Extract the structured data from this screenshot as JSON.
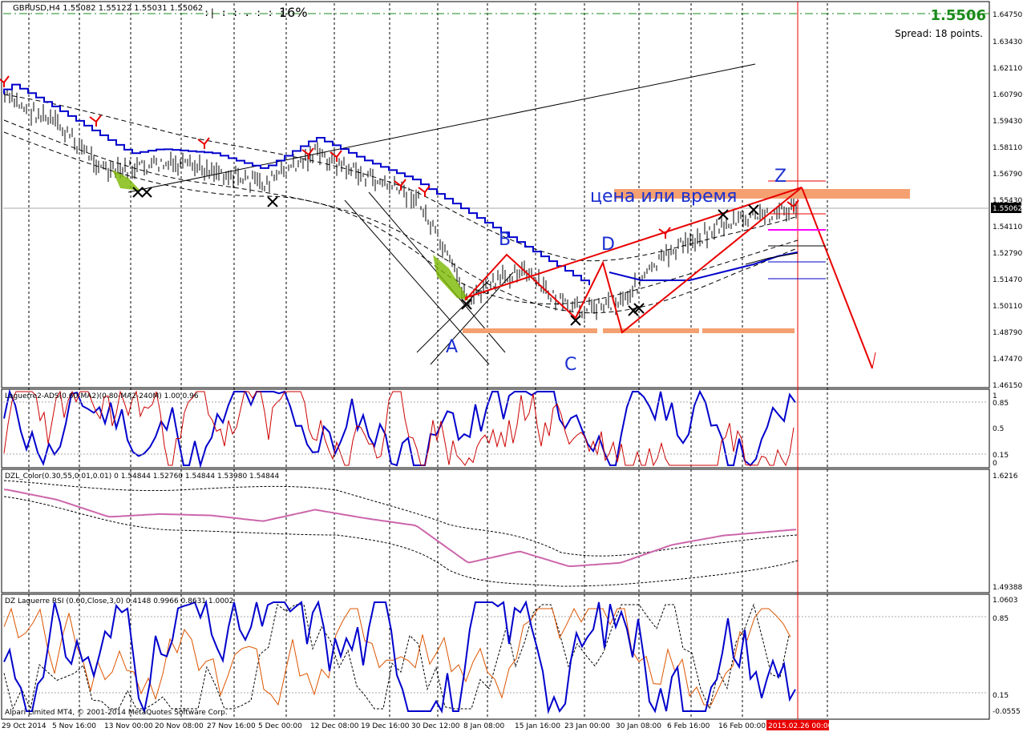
{
  "header": {
    "symbol_line": "GBPUSD,H4  1.55082 1.55122 1.55031 1.55062",
    "progress_glyphs": ":|  :  :  .  :  :  :",
    "progress_text": "16%",
    "big_price": "1.5506",
    "spread": "Spread: 18 points."
  },
  "annotations": {
    "A": "A",
    "B": "B",
    "C": "C",
    "D": "D",
    "Z": "Z",
    "price_or_time": "цена или время"
  },
  "panels": {
    "main": {
      "y_ticks": [
        "1.64750",
        "1.63430",
        "1.62110",
        "1.60790",
        "1.59430",
        "1.58110",
        "1.56790",
        "1.55430",
        "1.54110",
        "1.52790",
        "1.51470",
        "1.50110",
        "1.48790",
        "1.47470",
        "1.46150"
      ],
      "current_price": "1.55062"
    },
    "ind1": {
      "label": "Laguerre2-ADS(0.60-MA2)(0.80-MA2-240M) 1.00 0.96",
      "y_ticks": [
        "1",
        "0.85",
        "0.5",
        "0.15",
        "0"
      ]
    },
    "ind2": {
      "label": "DZL_Color(0.30,55,0.01,0.01) 0 1.54844 1.52760 1.54844 1.53980 1.54844",
      "y_ticks": [
        "1.6216",
        "1.49388"
      ]
    },
    "ind3": {
      "label": "DZ Laguerre RSI (0.60,Close,3,0) 0.4148 0.9966 0.8631 1.0002",
      "y_ticks": [
        "1.0603",
        "0.85",
        "0.15",
        "-0.0555"
      ]
    }
  },
  "x_labels": [
    "29 Oct 2014",
    "5 Nov 16:00",
    "13 Nov 00:00",
    "20 Nov 08:00",
    "27 Nov 16:00",
    "5 Dec 00:00",
    "12 Dec 08:00",
    "19 Dec 16:00",
    "30 Dec 12:00",
    "8 Jan 08:00",
    "15 Jan 16:00",
    "23 Jan 00:00",
    "30 Jan 08:00",
    "6 Feb 16:00",
    "16 Feb 00:00"
  ],
  "x_highlight": "2015.02.26 00:00",
  "copyright": "Alpari Limited MT4, © 2001-2014 MetaQuotes Software Corp.",
  "colors": {
    "bg": "#ffffff",
    "candle": "#000000",
    "ma_blue": "#0000cc",
    "pattern_red": "#e80000",
    "zone_orange": "#f4a070",
    "big_price_green": "#1a8a1a",
    "grid": "#000000"
  },
  "chart_data": {
    "type": "line",
    "symbol": "GBPUSD",
    "timeframe": "H4",
    "ohlc_last": {
      "open": 1.55082,
      "high": 1.55122,
      "low": 1.55031,
      "close": 1.55062
    },
    "x": [
      "29 Oct 2014",
      "5 Nov 16:00",
      "13 Nov 00:00",
      "20 Nov 08:00",
      "27 Nov 16:00",
      "5 Dec 00:00",
      "12 Dec 08:00",
      "19 Dec 16:00",
      "30 Dec 12:00",
      "8 Jan 08:00",
      "15 Jan 16:00",
      "23 Jan 00:00",
      "30 Jan 08:00",
      "6 Feb 16:00",
      "16 Feb 00:00"
    ],
    "series": [
      {
        "values": [
          1.606,
          1.592,
          1.568,
          1.572,
          1.57,
          1.562,
          1.578,
          1.566,
          1.556,
          1.504,
          1.52,
          1.499,
          1.504,
          1.529,
          1.542
        ]
      }
    ],
    "pattern_points": [
      {
        "label": "A",
        "price": 1.503
      },
      {
        "label": "B",
        "price": 1.527
      },
      {
        "label": "C",
        "price": 1.498
      },
      {
        "label": "D",
        "price": 1.523
      },
      {
        "label": "Z",
        "price": 1.559
      }
    ],
    "ylim": [
      1.4615,
      1.6475
    ],
    "grid": true
  }
}
